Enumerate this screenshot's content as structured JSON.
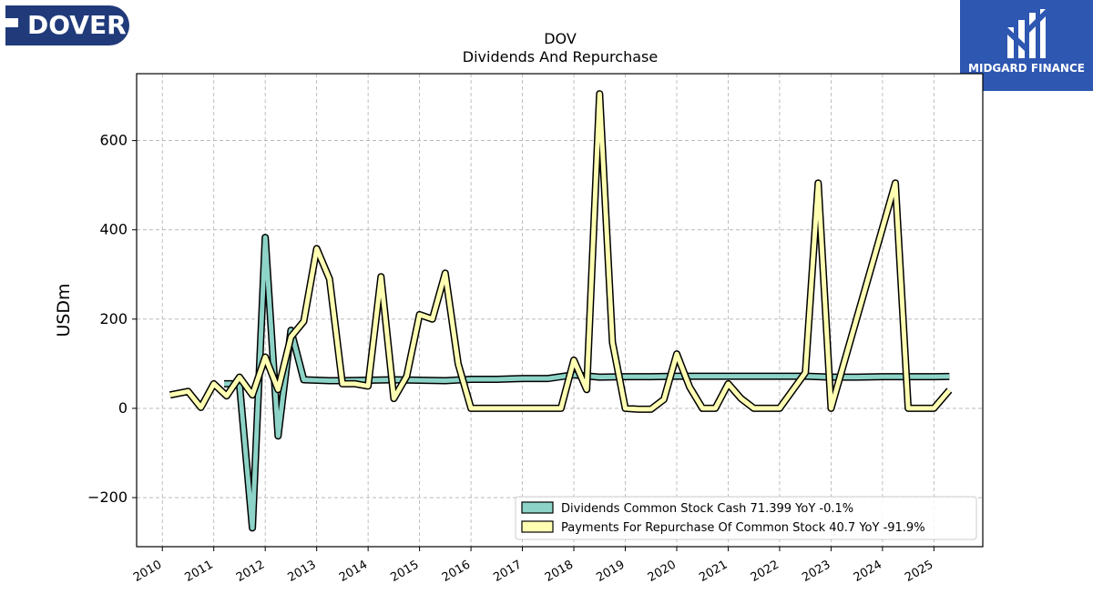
{
  "logos": {
    "left_brand": "DOVER",
    "right_brand": "MIDGARD FINANCE"
  },
  "colors": {
    "dividends": "#8dd3c7",
    "repurchase": "#ffffb3",
    "outline": "#000000",
    "grid": "#b0b0b0"
  },
  "chart_data": {
    "type": "line",
    "title": "DOV",
    "subtitle": "Dividends And Repurchase",
    "ylabel": "USDm",
    "xlabel": "",
    "ylim": [
      -310,
      750
    ],
    "xlim": [
      2009.5,
      2025.95
    ],
    "yticks": [
      -200,
      0,
      200,
      400,
      600
    ],
    "yticklabels": [
      "−200",
      "0",
      "200",
      "400",
      "600"
    ],
    "xticks": [
      2010,
      2011,
      2012,
      2013,
      2014,
      2015,
      2016,
      2017,
      2018,
      2019,
      2020,
      2021,
      2022,
      2023,
      2024,
      2025
    ],
    "xticklabels": [
      "2010",
      "2011",
      "2012",
      "2013",
      "2014",
      "2015",
      "2016",
      "2017",
      "2018",
      "2019",
      "2020",
      "2021",
      "2022",
      "2023",
      "2024",
      "2025"
    ],
    "grid": true,
    "legend_position": "lower-right",
    "series": [
      {
        "name": "Dividends Common Stock Cash",
        "legend_label": "Dividends Common Stock Cash  71.399 YoY -0.1%",
        "color": "#8dd3c7",
        "points": [
          [
            2011.2,
            55
          ],
          [
            2011.4,
            55
          ],
          [
            2011.5,
            55
          ],
          [
            2011.75,
            -268
          ],
          [
            2012.0,
            383
          ],
          [
            2012.25,
            -62
          ],
          [
            2012.5,
            175
          ],
          [
            2012.75,
            64
          ],
          [
            2013.25,
            62
          ],
          [
            2013.5,
            62
          ],
          [
            2014.0,
            63
          ],
          [
            2014.5,
            64
          ],
          [
            2015.0,
            63
          ],
          [
            2015.5,
            62
          ],
          [
            2016.0,
            65
          ],
          [
            2016.5,
            65
          ],
          [
            2017.0,
            67
          ],
          [
            2017.5,
            67
          ],
          [
            2018.0,
            75
          ],
          [
            2018.5,
            70
          ],
          [
            2019.0,
            71
          ],
          [
            2019.5,
            71
          ],
          [
            2020.0,
            72
          ],
          [
            2020.5,
            72
          ],
          [
            2021.0,
            72
          ],
          [
            2021.5,
            72
          ],
          [
            2022.0,
            72
          ],
          [
            2022.5,
            72
          ],
          [
            2023.0,
            70
          ],
          [
            2023.5,
            70
          ],
          [
            2024.0,
            71
          ],
          [
            2024.5,
            71
          ],
          [
            2025.0,
            71
          ],
          [
            2025.3,
            71.399
          ]
        ]
      },
      {
        "name": "Payments For Repurchase Of Common Stock",
        "legend_label": "Payments For Repurchase Of Common Stock  40.7 YoY -91.9%",
        "color": "#ffffb3",
        "points": [
          [
            2010.15,
            30
          ],
          [
            2010.5,
            38
          ],
          [
            2010.75,
            2
          ],
          [
            2011.0,
            55
          ],
          [
            2011.25,
            28
          ],
          [
            2011.5,
            70
          ],
          [
            2011.75,
            30
          ],
          [
            2012.0,
            115
          ],
          [
            2012.25,
            42
          ],
          [
            2012.5,
            160
          ],
          [
            2012.75,
            195
          ],
          [
            2013.0,
            358
          ],
          [
            2013.25,
            290
          ],
          [
            2013.5,
            55
          ],
          [
            2013.75,
            55
          ],
          [
            2014.0,
            50
          ],
          [
            2014.25,
            295
          ],
          [
            2014.5,
            22
          ],
          [
            2014.75,
            72
          ],
          [
            2015.0,
            210
          ],
          [
            2015.25,
            200
          ],
          [
            2015.5,
            303
          ],
          [
            2015.75,
            100
          ],
          [
            2016.0,
            0
          ],
          [
            2016.5,
            0
          ],
          [
            2017.0,
            0
          ],
          [
            2017.5,
            0
          ],
          [
            2017.75,
            0
          ],
          [
            2018.0,
            108
          ],
          [
            2018.25,
            42
          ],
          [
            2018.5,
            705
          ],
          [
            2018.75,
            148
          ],
          [
            2019.0,
            0
          ],
          [
            2019.25,
            -2
          ],
          [
            2019.5,
            -2
          ],
          [
            2019.75,
            20
          ],
          [
            2020.0,
            122
          ],
          [
            2020.25,
            48
          ],
          [
            2020.5,
            0
          ],
          [
            2020.75,
            0
          ],
          [
            2021.0,
            55
          ],
          [
            2021.25,
            22
          ],
          [
            2021.5,
            0
          ],
          [
            2021.75,
            0
          ],
          [
            2022.0,
            0
          ],
          [
            2022.5,
            80
          ],
          [
            2022.75,
            505
          ],
          [
            2023.0,
            0
          ],
          [
            2024.25,
            505
          ],
          [
            2024.5,
            0
          ],
          [
            2024.75,
            0
          ],
          [
            2025.0,
            0
          ],
          [
            2025.3,
            40.7
          ]
        ]
      }
    ]
  }
}
